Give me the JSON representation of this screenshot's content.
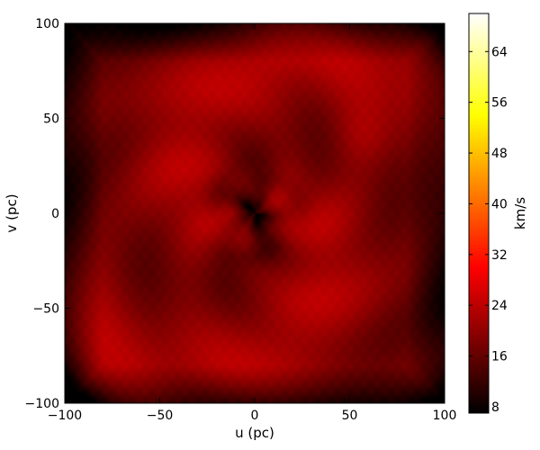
{
  "chart_data": {
    "type": "heatmap",
    "title": "",
    "xlabel": "u (pc)",
    "ylabel": "v (pc)",
    "xlim": [
      -100,
      100
    ],
    "ylim": [
      -100,
      100
    ],
    "x_ticks": [
      -100,
      -50,
      0,
      50,
      100
    ],
    "y_ticks": [
      -100,
      -50,
      0,
      50,
      100
    ],
    "x_tick_labels": [
      "−100",
      "−50",
      "0",
      "50",
      "100"
    ],
    "y_tick_labels": [
      "−100",
      "−50",
      "0",
      "50",
      "100"
    ],
    "grid": false,
    "field_description": "velocity dispersion map: spiral pattern of dark lanes around a low-value core near (0, 0)",
    "z_range_shown": [
      7,
      70
    ],
    "colorbar": {
      "label": "km/s",
      "colormap": "hot",
      "range": [
        7,
        70
      ],
      "ticks": [
        8,
        16,
        24,
        32,
        40,
        48,
        56,
        64
      ],
      "tick_labels": [
        "8",
        "16",
        "24",
        "32",
        "40",
        "48",
        "56",
        "64"
      ]
    }
  }
}
